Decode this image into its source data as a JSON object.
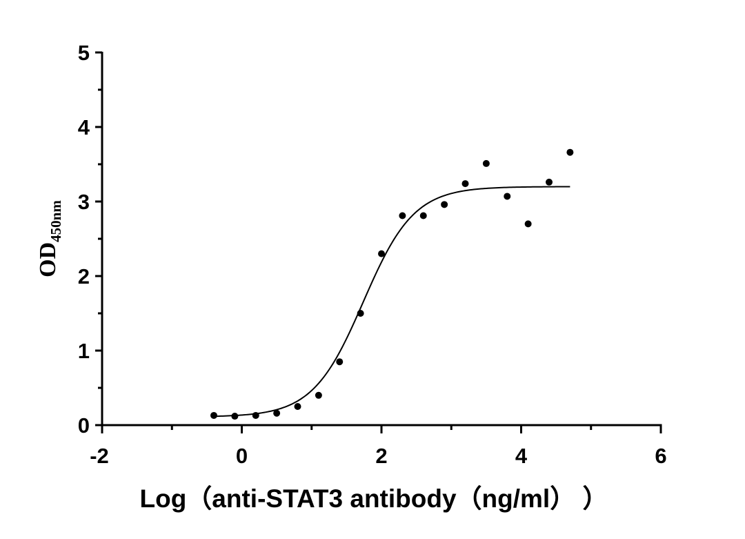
{
  "chart_data": {
    "type": "scatter",
    "xlabel": "Log（anti-STAT3 antibody（ng/ml）  ）",
    "ylabel": {
      "main": "OD",
      "subscript": "450nm"
    },
    "xlim": [
      -2,
      6
    ],
    "ylim": [
      0,
      5
    ],
    "xticks": [
      -2,
      0,
      2,
      4,
      6
    ],
    "yticks": [
      0,
      1,
      2,
      3,
      4,
      5
    ],
    "grid": false,
    "legend": "none",
    "points": {
      "x": [
        -0.4,
        -0.1,
        0.2,
        0.5,
        0.8,
        1.1,
        1.4,
        1.7,
        2.0,
        2.3,
        2.6,
        2.9,
        3.2,
        3.5,
        3.8,
        4.1,
        4.4,
        4.7
      ],
      "y": [
        0.13,
        0.12,
        0.13,
        0.16,
        0.25,
        0.4,
        0.85,
        1.5,
        2.3,
        2.81,
        2.81,
        2.96,
        3.24,
        3.51,
        3.07,
        2.7,
        3.26,
        3.66
      ]
    },
    "fit_curve": {
      "model": "four-parameter logistic",
      "bottom": 0.11,
      "top": 3.2,
      "log_ec50": 1.74,
      "hill_slope": 1.2,
      "x_range": [
        -0.4,
        4.7
      ]
    }
  }
}
